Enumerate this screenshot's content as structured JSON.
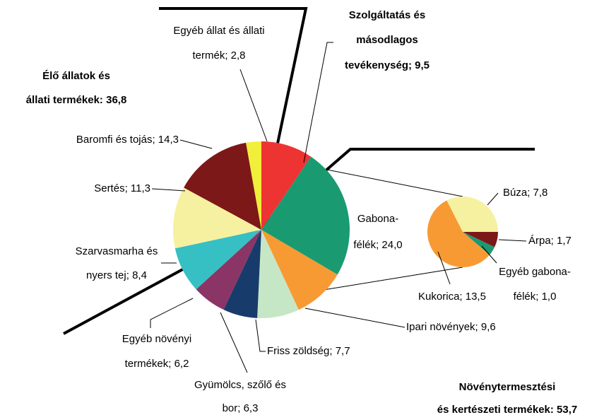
{
  "chart_data": {
    "type": "pie-of-pie",
    "annotations": [
      {
        "lines": [
          "Élő állatok és",
          "állati termékek:  36,8"
        ]
      },
      {
        "lines": [
          "Növénytermesztési",
          "és kertészeti termékek:  53,7"
        ]
      }
    ],
    "main": {
      "categories": [
        [
          "Szolgáltatás és",
          "másodlagos",
          "tevékenység; 9,5"
        ],
        [
          "Gabona-",
          "félék; 24,0"
        ],
        [
          "Ipari növények; 9,6"
        ],
        [
          "Friss zöldség; 7,7"
        ],
        [
          "Gyümölcs, szőlő és",
          "bor; 6,3"
        ],
        [
          "Egyéb növényi",
          "termékek; 6,2"
        ],
        [
          "Szarvasmarha és",
          "nyers tej; 8,4"
        ],
        [
          "Sertés; 11,3"
        ],
        [
          "Baromfi és tojás; 14,3"
        ],
        [
          "Egyéb állat és állati",
          "termék; 2,8"
        ]
      ],
      "values": [
        9.5,
        24.0,
        9.6,
        7.7,
        6.3,
        6.2,
        8.4,
        11.3,
        14.3,
        2.8
      ],
      "colors": [
        "#ee3333",
        "#1a9a70",
        "#f79a33",
        "#c6e7c6",
        "#173b6b",
        "#8a3566",
        "#36c0c4",
        "#f5f1a0",
        "#7d1818",
        "#f1ef3a"
      ]
    },
    "secondary": {
      "categories": [
        [
          "Búza; 7,8"
        ],
        [
          "Árpa; 1,7"
        ],
        [
          "Egyéb gabona-",
          "félék; 1,0"
        ],
        [
          "Kukorica; 13,5"
        ]
      ],
      "values": [
        7.8,
        1.7,
        1.0,
        13.5
      ],
      "colors": [
        "#f5f1a0",
        "#7d1818",
        "#1a9a70",
        "#f79a33"
      ]
    }
  }
}
